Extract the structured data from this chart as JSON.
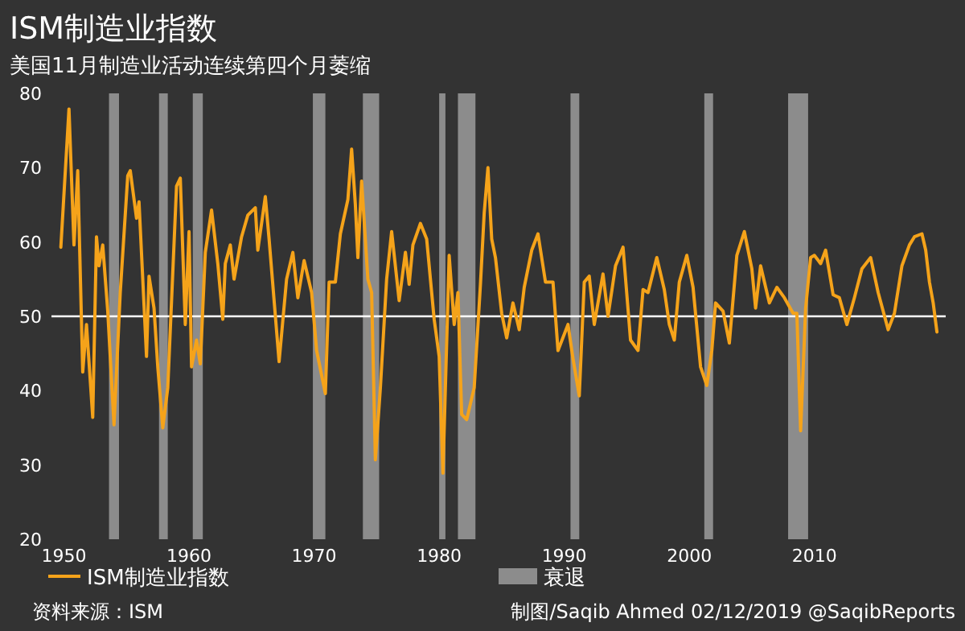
{
  "chart_data": {
    "type": "line",
    "title": "ISM制造业指数",
    "subtitle": "美国11月制造业活动连续第四个月萎缩",
    "annotations": [
      "资料来源：ISM",
      "制图/Saqib Ahmed 02/12/2019 @SaqibReports"
    ],
    "xlim": [
      1949,
      2020.5
    ],
    "xticks": [
      1950,
      1960,
      1970,
      1980,
      1990,
      2000,
      2010
    ],
    "ylim": [
      20,
      80
    ],
    "yticks": [
      20,
      30,
      40,
      50,
      60,
      70,
      80
    ],
    "grid": false,
    "legend": "bottom",
    "ref_lines": [
      {
        "axis": "y",
        "value": 50,
        "color": "#ffffff"
      }
    ],
    "bands": [
      {
        "axis": "x",
        "from": 1953.6,
        "to": 1954.4,
        "label": "衰退",
        "color": "#8c8c8c"
      },
      {
        "axis": "x",
        "from": 1957.6,
        "to": 1958.3,
        "color": "#8c8c8c"
      },
      {
        "axis": "x",
        "from": 1960.3,
        "to": 1961.1,
        "color": "#8c8c8c"
      },
      {
        "axis": "x",
        "from": 1969.9,
        "to": 1970.9,
        "color": "#8c8c8c"
      },
      {
        "axis": "x",
        "from": 1973.9,
        "to": 1975.2,
        "color": "#8c8c8c"
      },
      {
        "axis": "x",
        "from": 1980.0,
        "to": 1980.5,
        "color": "#8c8c8c"
      },
      {
        "axis": "x",
        "from": 1981.5,
        "to": 1982.9,
        "color": "#8c8c8c"
      },
      {
        "axis": "x",
        "from": 1990.5,
        "to": 1991.2,
        "color": "#8c8c8c"
      },
      {
        "axis": "x",
        "from": 2001.2,
        "to": 2001.9,
        "color": "#8c8c8c"
      },
      {
        "axis": "x",
        "from": 2007.9,
        "to": 2009.5,
        "color": "#8c8c8c"
      }
    ],
    "series": [
      {
        "name": "ISM制造业指数",
        "color": "#f5a31a",
        "x": [
          1949.75,
          1950.4,
          1950.8,
          1951.1,
          1951.5,
          1951.8,
          1952.3,
          1952.6,
          1952.8,
          1953.1,
          1953.5,
          1954.0,
          1954.5,
          1955.1,
          1955.3,
          1955.8,
          1956.0,
          1956.6,
          1956.8,
          1957.2,
          1957.5,
          1957.9,
          1958.3,
          1959.0,
          1959.3,
          1959.7,
          1960.0,
          1960.2,
          1960.6,
          1960.9,
          1961.3,
          1961.8,
          1962.3,
          1962.7,
          1962.9,
          1963.3,
          1963.6,
          1964.2,
          1964.7,
          1965.3,
          1965.5,
          1966.1,
          1966.4,
          1967.2,
          1967.8,
          1968.3,
          1968.7,
          1969.2,
          1969.8,
          1970.2,
          1970.9,
          1971.2,
          1971.7,
          1972.1,
          1972.7,
          1973.0,
          1973.3,
          1973.5,
          1973.8,
          1974.3,
          1974.6,
          1974.9,
          1975.3,
          1975.8,
          1976.2,
          1976.8,
          1977.3,
          1977.6,
          1977.9,
          1978.5,
          1979.0,
          1979.6,
          1980.0,
          1980.3,
          1980.8,
          1981.2,
          1981.5,
          1981.8,
          1982.2,
          1982.8,
          1983.3,
          1983.6,
          1983.9,
          1984.2,
          1984.5,
          1985.0,
          1985.4,
          1985.9,
          1986.4,
          1986.8,
          1987.4,
          1987.9,
          1988.5,
          1989.1,
          1989.5,
          1990.3,
          1990.7,
          1991.2,
          1991.6,
          1992.0,
          1992.4,
          1993.1,
          1993.5,
          1994.1,
          1994.7,
          1995.3,
          1995.9,
          1996.3,
          1996.7,
          1997.4,
          1998.0,
          1998.4,
          1998.8,
          1999.2,
          1999.8,
          2000.3,
          2000.9,
          2001.4,
          2001.8,
          2002.1,
          2002.7,
          2003.2,
          2003.8,
          2004.4,
          2005.0,
          2005.3,
          2005.7,
          2006.4,
          2007.0,
          2007.6,
          2008.3,
          2008.6,
          2008.9,
          2009.3,
          2009.7,
          2010.0,
          2010.5,
          2010.9,
          2011.5,
          2012.0,
          2012.6,
          2013.2,
          2013.8,
          2014.5,
          2015.1,
          2015.9,
          2016.4,
          2017.0,
          2017.6,
          2018.0,
          2018.6,
          2018.9,
          2019.2,
          2019.5,
          2019.8
        ],
        "values": [
          59.3,
          77.9,
          59.6,
          69.6,
          42.5,
          48.9,
          36.4,
          60.7,
          56.8,
          59.6,
          50.7,
          35.4,
          53.2,
          68.9,
          69.6,
          63.2,
          65.4,
          44.6,
          55.4,
          51.1,
          43.2,
          35.0,
          40.4,
          67.5,
          68.6,
          48.9,
          61.4,
          43.2,
          46.8,
          43.6,
          58.6,
          64.3,
          57.1,
          49.6,
          57.1,
          59.6,
          55.0,
          60.7,
          63.6,
          64.6,
          58.9,
          66.1,
          60.4,
          43.9,
          55.0,
          58.6,
          52.5,
          57.5,
          53.2,
          45.4,
          39.6,
          54.6,
          54.6,
          61.1,
          65.7,
          72.5,
          65.0,
          57.9,
          68.2,
          55.0,
          53.2,
          30.7,
          40.4,
          55.0,
          61.4,
          52.1,
          58.6,
          54.3,
          59.6,
          62.5,
          60.4,
          49.6,
          44.6,
          28.9,
          58.2,
          48.9,
          53.2,
          36.8,
          36.1,
          40.4,
          54.3,
          63.9,
          70.0,
          60.4,
          57.9,
          50.4,
          47.1,
          51.8,
          48.2,
          53.9,
          58.9,
          61.1,
          54.6,
          54.6,
          45.4,
          48.9,
          44.3,
          39.3,
          54.6,
          55.4,
          48.9,
          55.7,
          50.0,
          56.8,
          59.3,
          46.8,
          45.4,
          53.6,
          53.2,
          57.9,
          53.6,
          48.9,
          46.8,
          54.6,
          58.2,
          53.9,
          43.2,
          40.7,
          45.4,
          51.8,
          50.7,
          46.4,
          58.2,
          61.4,
          56.4,
          51.1,
          56.8,
          51.8,
          53.9,
          52.5,
          50.4,
          50.4,
          34.6,
          51.1,
          57.9,
          58.2,
          57.1,
          58.9,
          52.9,
          52.5,
          48.9,
          52.5,
          56.4,
          57.9,
          53.2,
          48.2,
          50.4,
          56.8,
          59.6,
          60.7,
          61.1,
          58.9,
          54.6,
          51.8,
          47.9
        ]
      }
    ]
  }
}
